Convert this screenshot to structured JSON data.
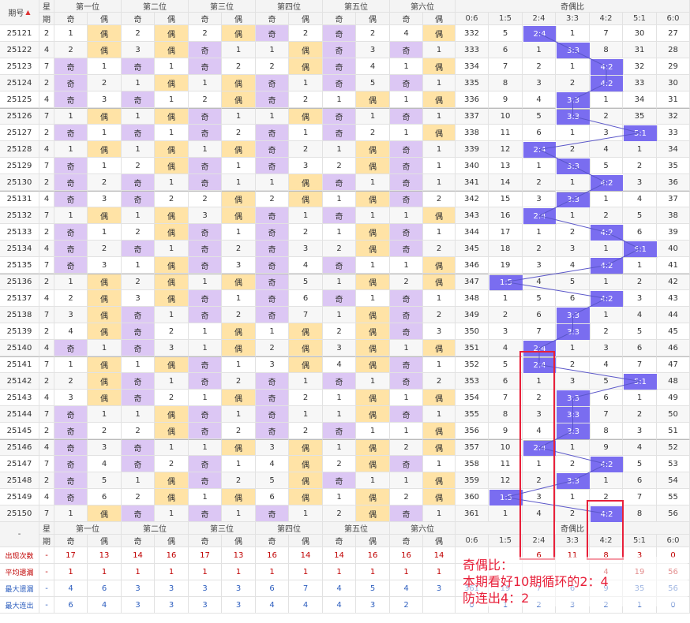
{
  "headers": {
    "period": "期号",
    "sort_icon": "sort-icon",
    "week_top": "星",
    "week_bottom": "期",
    "positions": [
      "第一位",
      "第二位",
      "第三位",
      "第四位",
      "第五位",
      "第六位"
    ],
    "odd": "奇",
    "even": "偶",
    "ratio_title": "奇偶比",
    "ratios": [
      "0:6",
      "1:5",
      "2:4",
      "3:3",
      "4:2",
      "5:1",
      "6:0"
    ]
  },
  "rows": [
    {
      "id": "25121",
      "w": "2",
      "p": [
        [
          "1",
          "偶"
        ],
        [
          "2",
          "偶"
        ],
        [
          "2",
          "偶"
        ],
        [
          "奇",
          "2"
        ],
        [
          "奇",
          "2"
        ],
        [
          "4",
          "偶"
        ]
      ],
      "r": [
        "332",
        "5",
        "2:4",
        "1",
        "7",
        "30",
        "27"
      ],
      "cur": 2
    },
    {
      "id": "25122",
      "w": "4",
      "p": [
        [
          "2",
          "偶"
        ],
        [
          "3",
          "偶"
        ],
        [
          "奇",
          "1"
        ],
        [
          "1",
          "偶"
        ],
        [
          "奇",
          "3"
        ],
        [
          "奇",
          "1"
        ]
      ],
      "r": [
        "333",
        "6",
        "1",
        "3:3",
        "8",
        "31",
        "28"
      ],
      "cur": 3
    },
    {
      "id": "25123",
      "w": "7",
      "p": [
        [
          "奇",
          "1"
        ],
        [
          "奇",
          "1"
        ],
        [
          "奇",
          "2"
        ],
        [
          "2",
          "偶"
        ],
        [
          "奇",
          "4"
        ],
        [
          "1",
          "偶"
        ]
      ],
      "r": [
        "334",
        "7",
        "2",
        "1",
        "4:2",
        "32",
        "29"
      ],
      "cur": 4
    },
    {
      "id": "25124",
      "w": "2",
      "p": [
        [
          "奇",
          "2"
        ],
        [
          "1",
          "偶"
        ],
        [
          "1",
          "偶"
        ],
        [
          "奇",
          "1"
        ],
        [
          "奇",
          "5"
        ],
        [
          "奇",
          "1"
        ]
      ],
      "r": [
        "335",
        "8",
        "3",
        "2",
        "4:2",
        "33",
        "30"
      ],
      "cur": 4
    },
    {
      "id": "25125",
      "w": "4",
      "p": [
        [
          "奇",
          "3"
        ],
        [
          "奇",
          "1"
        ],
        [
          "2",
          "偶"
        ],
        [
          "奇",
          "2"
        ],
        [
          "1",
          "偶"
        ],
        [
          "1",
          "偶"
        ]
      ],
      "r": [
        "336",
        "9",
        "4",
        "3:3",
        "1",
        "34",
        "31"
      ],
      "cur": 3
    },
    {
      "id": "25126",
      "w": "7",
      "p": [
        [
          "1",
          "偶"
        ],
        [
          "1",
          "偶"
        ],
        [
          "奇",
          "1"
        ],
        [
          "1",
          "偶"
        ],
        [
          "奇",
          "1"
        ],
        [
          "奇",
          "1"
        ]
      ],
      "r": [
        "337",
        "10",
        "5",
        "3:3",
        "2",
        "35",
        "32"
      ],
      "cur": 3
    },
    {
      "id": "25127",
      "w": "2",
      "p": [
        [
          "奇",
          "1"
        ],
        [
          "奇",
          "1"
        ],
        [
          "奇",
          "2"
        ],
        [
          "奇",
          "1"
        ],
        [
          "奇",
          "2"
        ],
        [
          "1",
          "偶"
        ]
      ],
      "r": [
        "338",
        "11",
        "6",
        "1",
        "3",
        "5:1",
        "33"
      ],
      "cur": 5
    },
    {
      "id": "25128",
      "w": "4",
      "p": [
        [
          "1",
          "偶"
        ],
        [
          "1",
          "偶"
        ],
        [
          "1",
          "偶"
        ],
        [
          "奇",
          "2"
        ],
        [
          "1",
          "偶"
        ],
        [
          "奇",
          "1"
        ]
      ],
      "r": [
        "339",
        "12",
        "2:4",
        "2",
        "4",
        "1",
        "34"
      ],
      "cur": 2
    },
    {
      "id": "25129",
      "w": "7",
      "p": [
        [
          "奇",
          "1"
        ],
        [
          "2",
          "偶"
        ],
        [
          "奇",
          "1"
        ],
        [
          "奇",
          "3"
        ],
        [
          "2",
          "偶"
        ],
        [
          "奇",
          "1"
        ]
      ],
      "r": [
        "340",
        "13",
        "1",
        "3:3",
        "5",
        "2",
        "35"
      ],
      "cur": 3
    },
    {
      "id": "25130",
      "w": "2",
      "p": [
        [
          "奇",
          "2"
        ],
        [
          "奇",
          "1"
        ],
        [
          "奇",
          "1"
        ],
        [
          "1",
          "偶"
        ],
        [
          "奇",
          "1"
        ],
        [
          "奇",
          "1"
        ]
      ],
      "r": [
        "341",
        "14",
        "2",
        "1",
        "4:2",
        "3",
        "36"
      ],
      "cur": 4
    },
    {
      "id": "25131",
      "w": "4",
      "p": [
        [
          "奇",
          "3"
        ],
        [
          "奇",
          "2"
        ],
        [
          "2",
          "偶"
        ],
        [
          "2",
          "偶"
        ],
        [
          "1",
          "偶"
        ],
        [
          "奇",
          "2"
        ]
      ],
      "r": [
        "342",
        "15",
        "3",
        "3:3",
        "1",
        "4",
        "37"
      ],
      "cur": 3
    },
    {
      "id": "25132",
      "w": "7",
      "p": [
        [
          "1",
          "偶"
        ],
        [
          "1",
          "偶"
        ],
        [
          "3",
          "偶"
        ],
        [
          "奇",
          "1"
        ],
        [
          "奇",
          "1"
        ],
        [
          "1",
          "偶"
        ]
      ],
      "r": [
        "343",
        "16",
        "2:4",
        "1",
        "2",
        "5",
        "38"
      ],
      "cur": 2
    },
    {
      "id": "25133",
      "w": "2",
      "p": [
        [
          "奇",
          "1"
        ],
        [
          "2",
          "偶"
        ],
        [
          "奇",
          "1"
        ],
        [
          "奇",
          "2"
        ],
        [
          "1",
          "偶"
        ],
        [
          "奇",
          "1"
        ]
      ],
      "r": [
        "344",
        "17",
        "1",
        "2",
        "4:2",
        "6",
        "39"
      ],
      "cur": 4
    },
    {
      "id": "25134",
      "w": "4",
      "p": [
        [
          "奇",
          "2"
        ],
        [
          "奇",
          "1"
        ],
        [
          "奇",
          "2"
        ],
        [
          "奇",
          "3"
        ],
        [
          "2",
          "偶"
        ],
        [
          "奇",
          "2"
        ]
      ],
      "r": [
        "345",
        "18",
        "2",
        "3",
        "1",
        "5:1",
        "40"
      ],
      "cur": 5
    },
    {
      "id": "25135",
      "w": "7",
      "p": [
        [
          "奇",
          "3"
        ],
        [
          "1",
          "偶"
        ],
        [
          "奇",
          "3"
        ],
        [
          "奇",
          "4"
        ],
        [
          "奇",
          "1"
        ],
        [
          "1",
          "偶"
        ]
      ],
      "r": [
        "346",
        "19",
        "3",
        "4",
        "4:2",
        "1",
        "41"
      ],
      "cur": 4
    },
    {
      "id": "25136",
      "w": "2",
      "p": [
        [
          "1",
          "偶"
        ],
        [
          "2",
          "偶"
        ],
        [
          "1",
          "偶"
        ],
        [
          "奇",
          "5"
        ],
        [
          "1",
          "偶"
        ],
        [
          "2",
          "偶"
        ]
      ],
      "r": [
        "347",
        "1:5",
        "4",
        "5",
        "1",
        "2",
        "42"
      ],
      "cur": 1
    },
    {
      "id": "25137",
      "w": "4",
      "p": [
        [
          "2",
          "偶"
        ],
        [
          "3",
          "偶"
        ],
        [
          "奇",
          "1"
        ],
        [
          "奇",
          "6"
        ],
        [
          "奇",
          "1"
        ],
        [
          "奇",
          "1"
        ]
      ],
      "r": [
        "348",
        "1",
        "5",
        "6",
        "4:2",
        "3",
        "43"
      ],
      "cur": 4
    },
    {
      "id": "25138",
      "w": "7",
      "p": [
        [
          "3",
          "偶"
        ],
        [
          "奇",
          "1"
        ],
        [
          "奇",
          "2"
        ],
        [
          "奇",
          "7"
        ],
        [
          "1",
          "偶"
        ],
        [
          "奇",
          "2"
        ]
      ],
      "r": [
        "349",
        "2",
        "6",
        "3:3",
        "1",
        "4",
        "44"
      ],
      "cur": 3
    },
    {
      "id": "25139",
      "w": "2",
      "p": [
        [
          "4",
          "偶"
        ],
        [
          "奇",
          "2"
        ],
        [
          "1",
          "偶"
        ],
        [
          "1",
          "偶"
        ],
        [
          "2",
          "偶"
        ],
        [
          "奇",
          "3"
        ]
      ],
      "r": [
        "350",
        "3",
        "7",
        "3:3",
        "2",
        "5",
        "45"
      ],
      "cur": 3
    },
    {
      "id": "25140",
      "w": "4",
      "p": [
        [
          "奇",
          "1"
        ],
        [
          "奇",
          "3"
        ],
        [
          "1",
          "偶"
        ],
        [
          "2",
          "偶"
        ],
        [
          "3",
          "偶"
        ],
        [
          "1",
          "偶"
        ]
      ],
      "r": [
        "351",
        "4",
        "2:4",
        "1",
        "3",
        "6",
        "46"
      ],
      "cur": 2
    },
    {
      "id": "25141",
      "w": "7",
      "p": [
        [
          "1",
          "偶"
        ],
        [
          "1",
          "偶"
        ],
        [
          "奇",
          "1"
        ],
        [
          "3",
          "偶"
        ],
        [
          "4",
          "偶"
        ],
        [
          "奇",
          "1"
        ]
      ],
      "r": [
        "352",
        "5",
        "2:4",
        "2",
        "4",
        "7",
        "47"
      ],
      "cur": 2
    },
    {
      "id": "25142",
      "w": "2",
      "p": [
        [
          "2",
          "偶"
        ],
        [
          "奇",
          "1"
        ],
        [
          "奇",
          "2"
        ],
        [
          "奇",
          "1"
        ],
        [
          "奇",
          "1"
        ],
        [
          "奇",
          "2"
        ]
      ],
      "r": [
        "353",
        "6",
        "1",
        "3",
        "5",
        "5:1",
        "48"
      ],
      "cur": 5
    },
    {
      "id": "25143",
      "w": "4",
      "p": [
        [
          "3",
          "偶"
        ],
        [
          "奇",
          "2"
        ],
        [
          "1",
          "偶"
        ],
        [
          "奇",
          "2"
        ],
        [
          "1",
          "偶"
        ],
        [
          "1",
          "偶"
        ]
      ],
      "r": [
        "354",
        "7",
        "2",
        "3:3",
        "6",
        "1",
        "49"
      ],
      "cur": 3
    },
    {
      "id": "25144",
      "w": "7",
      "p": [
        [
          "奇",
          "1"
        ],
        [
          "1",
          "偶"
        ],
        [
          "奇",
          "1"
        ],
        [
          "奇",
          "1"
        ],
        [
          "1",
          "偶"
        ],
        [
          "奇",
          "1"
        ]
      ],
      "r": [
        "355",
        "8",
        "3",
        "3:3",
        "7",
        "2",
        "50"
      ],
      "cur": 3
    },
    {
      "id": "25145",
      "w": "2",
      "p": [
        [
          "奇",
          "2"
        ],
        [
          "2",
          "偶"
        ],
        [
          "奇",
          "2"
        ],
        [
          "奇",
          "2"
        ],
        [
          "奇",
          "1"
        ],
        [
          "1",
          "偶"
        ]
      ],
      "r": [
        "356",
        "9",
        "4",
        "3:3",
        "8",
        "3",
        "51"
      ],
      "cur": 3
    },
    {
      "id": "25146",
      "w": "4",
      "p": [
        [
          "奇",
          "3"
        ],
        [
          "奇",
          "1"
        ],
        [
          "1",
          "偶"
        ],
        [
          "3",
          "偶"
        ],
        [
          "1",
          "偶"
        ],
        [
          "2",
          "偶"
        ]
      ],
      "r": [
        "357",
        "10",
        "2:4",
        "1",
        "9",
        "4",
        "52"
      ],
      "cur": 2
    },
    {
      "id": "25147",
      "w": "7",
      "p": [
        [
          "奇",
          "4"
        ],
        [
          "奇",
          "2"
        ],
        [
          "奇",
          "1"
        ],
        [
          "4",
          "偶"
        ],
        [
          "2",
          "偶"
        ],
        [
          "奇",
          "1"
        ]
      ],
      "r": [
        "358",
        "11",
        "1",
        "2",
        "4:2",
        "5",
        "53"
      ],
      "cur": 4
    },
    {
      "id": "25148",
      "w": "2",
      "p": [
        [
          "奇",
          "5"
        ],
        [
          "1",
          "偶"
        ],
        [
          "奇",
          "2"
        ],
        [
          "5",
          "偶"
        ],
        [
          "奇",
          "1"
        ],
        [
          "1",
          "偶"
        ]
      ],
      "r": [
        "359",
        "12",
        "2",
        "3:3",
        "1",
        "6",
        "54"
      ],
      "cur": 3
    },
    {
      "id": "25149",
      "w": "4",
      "p": [
        [
          "奇",
          "6"
        ],
        [
          "2",
          "偶"
        ],
        [
          "1",
          "偶"
        ],
        [
          "6",
          "偶"
        ],
        [
          "1",
          "偶"
        ],
        [
          "2",
          "偶"
        ]
      ],
      "r": [
        "360",
        "1:5",
        "3",
        "1",
        "2",
        "7",
        "55"
      ],
      "cur": 1
    },
    {
      "id": "25150",
      "w": "7",
      "p": [
        [
          "1",
          "偶"
        ],
        [
          "奇",
          "1"
        ],
        [
          "奇",
          "1"
        ],
        [
          "奇",
          "1"
        ],
        [
          "2",
          "偶"
        ],
        [
          "奇",
          "1"
        ]
      ],
      "r": [
        "361",
        "1",
        "4",
        "2",
        "4:2",
        "8",
        "56"
      ],
      "cur": 4
    }
  ],
  "footer": {
    "dash": "-",
    "rows": [
      {
        "label": "出现次数",
        "style": "red",
        "vals": [
          "-",
          "17",
          "13",
          "14",
          "16",
          "17",
          "13",
          "16",
          "14",
          "14",
          "16",
          "16",
          "14",
          "",
          "",
          "6",
          "11",
          "8",
          "3",
          "0"
        ]
      },
      {
        "label": "平均遗漏",
        "style": "red",
        "vals": [
          "-",
          "1",
          "1",
          "1",
          "1",
          "1",
          "1",
          "1",
          "1",
          "1",
          "1",
          "1",
          "1",
          "",
          "",
          "",
          "",
          "4",
          "19",
          "56"
        ]
      },
      {
        "label": "最大遗漏",
        "style": "blue",
        "vals": [
          "-",
          "4",
          "6",
          "3",
          "3",
          "3",
          "3",
          "6",
          "7",
          "4",
          "5",
          "4",
          "3",
          "361",
          "19",
          "7",
          "6",
          "9",
          "35",
          "56"
        ]
      },
      {
        "label": "最大连出",
        "style": "blue",
        "vals": [
          "-",
          "6",
          "4",
          "3",
          "3",
          "3",
          "3",
          "4",
          "4",
          "4",
          "3",
          "2",
          "",
          "0",
          "1",
          "2",
          "3",
          "2",
          "1",
          "0"
        ]
      }
    ]
  },
  "annotation": {
    "line1": "奇偶比：",
    "line2": "本期看好10期循环的2：4",
    "line3": "防连出4：2"
  },
  "colors": {
    "odd": "#dcc7f4",
    "even": "#ffe3a6",
    "current": "#7a6df0",
    "annotation": "#e8203a"
  }
}
